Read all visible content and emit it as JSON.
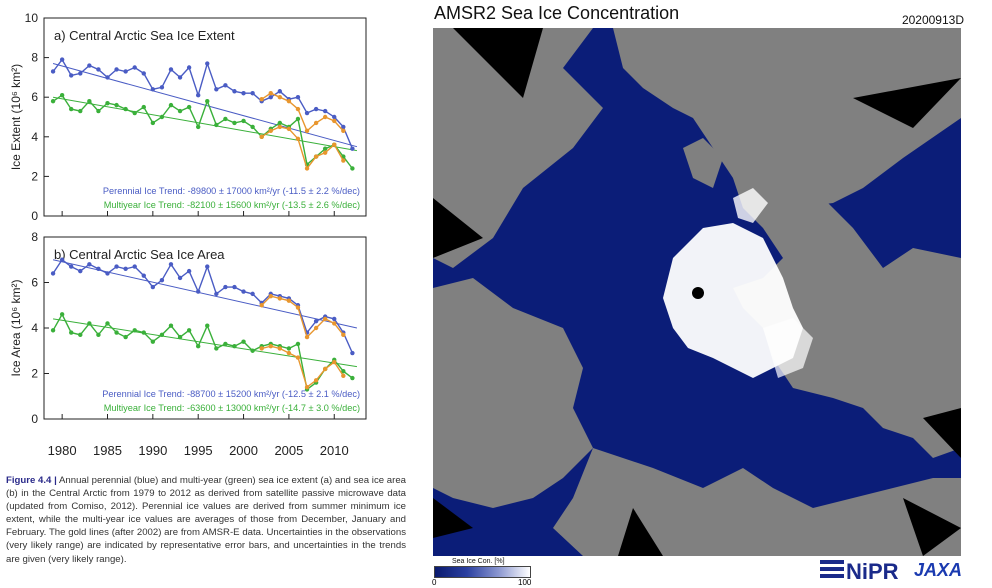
{
  "chart_data": [
    {
      "type": "line",
      "title": "a) Central Arctic Sea Ice Extent",
      "ylabel": "Ice Extent (10⁶ km²)",
      "xlabel": "",
      "xlim": [
        1978,
        2013.5
      ],
      "ylim": [
        0,
        10
      ],
      "xticks": [
        "1980",
        "1985",
        "1990",
        "1995",
        "2000",
        "2005",
        "2010"
      ],
      "yticks": [
        "0",
        "2",
        "4",
        "6",
        "8",
        "10"
      ],
      "grid": false,
      "series": [
        {
          "name": "Perennial",
          "color": "#4a5cc4",
          "x": [
            1979,
            1980,
            1981,
            1982,
            1983,
            1984,
            1985,
            1986,
            1987,
            1988,
            1989,
            1990,
            1991,
            1992,
            1993,
            1994,
            1995,
            1996,
            1997,
            1998,
            1999,
            2000,
            2001,
            2002,
            2003,
            2004,
            2005,
            2006,
            2007,
            2008,
            2009,
            2010,
            2011,
            2012
          ],
          "values": [
            7.3,
            7.9,
            7.1,
            7.2,
            7.6,
            7.4,
            7.0,
            7.4,
            7.3,
            7.5,
            7.2,
            6.4,
            6.5,
            7.4,
            7.0,
            7.5,
            6.1,
            7.7,
            6.4,
            6.6,
            6.3,
            6.2,
            6.2,
            5.8,
            6.0,
            6.3,
            5.9,
            6.0,
            5.2,
            5.4,
            5.3,
            5.0,
            4.5,
            3.4
          ]
        },
        {
          "name": "Multiyear",
          "color": "#3ab03a",
          "x": [
            1979,
            1980,
            1981,
            1982,
            1983,
            1984,
            1985,
            1986,
            1987,
            1988,
            1989,
            1990,
            1991,
            1992,
            1993,
            1994,
            1995,
            1996,
            1997,
            1998,
            1999,
            2000,
            2001,
            2002,
            2003,
            2004,
            2005,
            2006,
            2007,
            2008,
            2009,
            2010,
            2011,
            2012
          ],
          "values": [
            5.8,
            6.1,
            5.4,
            5.3,
            5.8,
            5.3,
            5.7,
            5.6,
            5.4,
            5.2,
            5.5,
            4.7,
            5.0,
            5.6,
            5.3,
            5.5,
            4.5,
            5.8,
            4.6,
            4.9,
            4.7,
            4.8,
            4.5,
            4.0,
            4.4,
            4.7,
            4.5,
            4.9,
            2.6,
            3.0,
            3.4,
            3.6,
            3.0,
            2.4
          ]
        },
        {
          "name": "Perennial (AMSR-E)",
          "color": "#e8962e",
          "x": [
            2002,
            2003,
            2004,
            2005,
            2006,
            2007,
            2008,
            2009,
            2010,
            2011
          ],
          "values": [
            5.9,
            6.2,
            6.0,
            5.8,
            5.4,
            4.3,
            4.7,
            5.0,
            4.8,
            4.3
          ]
        },
        {
          "name": "Multiyear (AMSR-E)",
          "color": "#e8962e",
          "x": [
            2002,
            2003,
            2004,
            2005,
            2006,
            2007,
            2008,
            2009,
            2010,
            2011
          ],
          "values": [
            4.0,
            4.3,
            4.5,
            4.4,
            3.9,
            2.4,
            3.0,
            3.2,
            3.6,
            2.8
          ]
        }
      ],
      "trend_lines": [
        {
          "series": "Perennial",
          "x": [
            1979,
            2012.5
          ],
          "values": [
            7.7,
            3.5
          ]
        },
        {
          "series": "Multiyear",
          "x": [
            1979,
            2012.5
          ],
          "values": [
            6.0,
            3.3
          ]
        }
      ],
      "annotations": [
        "Perennial Ice Trend: -89800 ± 17000 km²/yr (-11.5 ± 2.2 %/dec)",
        "Multiyear Ice Trend: -82100 ± 15600 km²/yr (-13.5 ± 2.6 %/dec)"
      ]
    },
    {
      "type": "line",
      "title": "b) Central Arctic Sea Ice Area",
      "ylabel": "Ice Area (10⁶ km²)",
      "xlabel": "",
      "xlim": [
        1978,
        2013.5
      ],
      "ylim": [
        0,
        8
      ],
      "xticks": [
        "1980",
        "1985",
        "1990",
        "1995",
        "2000",
        "2005",
        "2010"
      ],
      "yticks": [
        "0",
        "2",
        "4",
        "6",
        "8"
      ],
      "grid": false,
      "series": [
        {
          "name": "Perennial",
          "color": "#4a5cc4",
          "x": [
            1979,
            1980,
            1981,
            1982,
            1983,
            1984,
            1985,
            1986,
            1987,
            1988,
            1989,
            1990,
            1991,
            1992,
            1993,
            1994,
            1995,
            1996,
            1997,
            1998,
            1999,
            2000,
            2001,
            2002,
            2003,
            2004,
            2005,
            2006,
            2007,
            2008,
            2009,
            2010,
            2011,
            2012
          ],
          "values": [
            6.4,
            7.0,
            6.7,
            6.5,
            6.8,
            6.6,
            6.4,
            6.7,
            6.6,
            6.7,
            6.3,
            5.8,
            6.1,
            6.8,
            6.2,
            6.5,
            5.6,
            6.7,
            5.5,
            5.8,
            5.8,
            5.6,
            5.5,
            5.1,
            5.5,
            5.4,
            5.3,
            5.0,
            3.8,
            4.3,
            4.5,
            4.4,
            3.8,
            2.9
          ]
        },
        {
          "name": "Multiyear",
          "color": "#3ab03a",
          "x": [
            1979,
            1980,
            1981,
            1982,
            1983,
            1984,
            1985,
            1986,
            1987,
            1988,
            1989,
            1990,
            1991,
            1992,
            1993,
            1994,
            1995,
            1996,
            1997,
            1998,
            1999,
            2000,
            2001,
            2002,
            2003,
            2004,
            2005,
            2006,
            2007,
            2008,
            2009,
            2010,
            2011,
            2012
          ],
          "values": [
            3.9,
            4.6,
            3.8,
            3.7,
            4.2,
            3.7,
            4.2,
            3.8,
            3.6,
            3.9,
            3.8,
            3.4,
            3.7,
            4.1,
            3.6,
            3.9,
            3.2,
            4.1,
            3.1,
            3.3,
            3.2,
            3.4,
            3.0,
            3.2,
            3.3,
            3.2,
            3.1,
            3.3,
            1.3,
            1.6,
            2.2,
            2.6,
            2.1,
            1.8
          ]
        },
        {
          "name": "Perennial (AMSR-E)",
          "color": "#e8962e",
          "x": [
            2002,
            2003,
            2004,
            2005,
            2006,
            2007,
            2008,
            2009,
            2010,
            2011
          ],
          "values": [
            5.0,
            5.4,
            5.3,
            5.2,
            4.9,
            3.6,
            4.0,
            4.4,
            4.2,
            3.7
          ]
        },
        {
          "name": "Multiyear (AMSR-E)",
          "color": "#e8962e",
          "x": [
            2002,
            2003,
            2004,
            2005,
            2006,
            2007,
            2008,
            2009,
            2010,
            2011
          ],
          "values": [
            3.1,
            3.2,
            3.1,
            2.9,
            2.7,
            1.4,
            1.7,
            2.2,
            2.5,
            1.9
          ]
        }
      ],
      "trend_lines": [
        {
          "series": "Perennial",
          "x": [
            1979,
            2012.5
          ],
          "values": [
            7.0,
            4.0
          ]
        },
        {
          "series": "Multiyear",
          "x": [
            1979,
            2012.5
          ],
          "values": [
            4.4,
            2.3
          ]
        }
      ],
      "annotations": [
        "Perennial Ice Trend: -88700 ± 15200 km²/yr (-12.5 ± 2.1 %/dec)",
        "Multiyear Ice Trend: -63600 ± 13000 km²/yr (-14.7 ± 3.0 %/dec)"
      ]
    }
  ],
  "caption": {
    "fig": "Figure 4.4 |",
    "text": "Annual perennial (blue) and multi-year (green) sea ice extent (a) and sea ice area (b) in the Central Arctic from 1979 to 2012 as derived from satellite passive microwave data (updated from Comiso, 2012). Perennial ice values are derived from summer minimum ice extent, while the multi-year ice values are averages of those from December, January and February. The gold lines (after 2002) are from AMSR-E data. Uncertainties in the observations (very likely range) are indicated by representative error bars, and uncertainties in the trends are given (very likely range)."
  },
  "map": {
    "title": "AMSR2 Sea Ice Concentration",
    "date": "20200913D",
    "legend_title": "Sea Ice Con. [%]",
    "legend_min": "0",
    "legend_max": "100",
    "colors": {
      "ocean": "#0b1d78",
      "land": "#808080",
      "ice": "#ffffff",
      "missing": "#000000"
    }
  },
  "logos": {
    "nipr": "NiPR",
    "jaxa": "JAXA"
  }
}
